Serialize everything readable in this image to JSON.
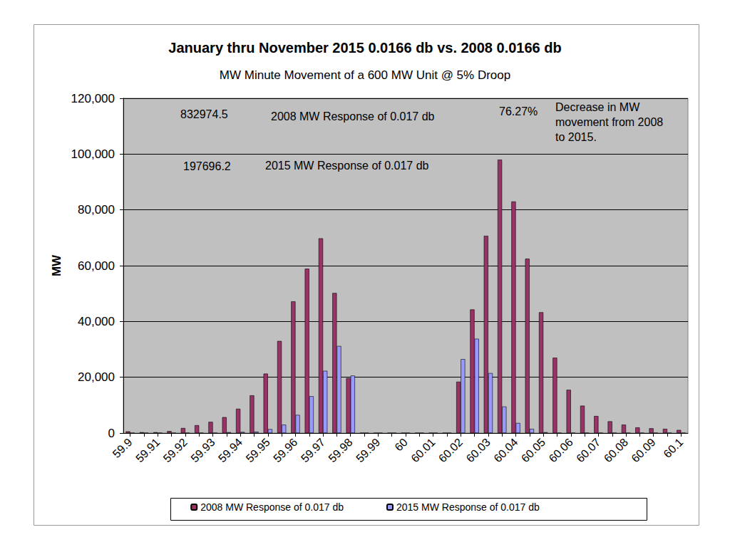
{
  "chart_data": {
    "type": "bar",
    "title": "January thru November 2015 0.0166 db vs. 2008 0.0166 db",
    "subtitle": "MW Minute Movement of a 600 MW Unit @ 5% Droop",
    "y_label": "MW",
    "categories": [
      "59.9",
      null,
      "59.91",
      null,
      "59.92",
      null,
      "59.93",
      null,
      "59.94",
      null,
      "59.95",
      null,
      "59.96",
      null,
      "59.97",
      null,
      "59.98",
      null,
      "59.99",
      null,
      "60",
      null,
      "60.01",
      null,
      "60.02",
      null,
      "60.03",
      null,
      "60.04",
      null,
      "60.05",
      null,
      "60.06",
      null,
      "60.07",
      null,
      "60.08",
      null,
      "60.09",
      null,
      "60.1"
    ],
    "series": [
      {
        "name": "2008 MW Response of 0.017 db",
        "color": "#993366",
        "values": [
          600,
          300,
          300,
          700,
          1800,
          2800,
          4000,
          5700,
          8700,
          13500,
          21300,
          33000,
          47200,
          58900,
          69800,
          50200,
          19700,
          0,
          0,
          0,
          0,
          0,
          0,
          0,
          18400,
          44300,
          70700,
          98000,
          83000,
          62500,
          43300,
          27000,
          15500,
          9800,
          6100,
          4200,
          3000,
          2000,
          1700,
          1500,
          1100
        ]
      },
      {
        "name": "2015 MW Response of 0.017 db",
        "color": "#9999FF",
        "values": [
          0,
          0,
          0,
          0,
          0,
          0,
          0,
          300,
          400,
          500,
          1400,
          3000,
          6500,
          13200,
          22300,
          31200,
          20600,
          0,
          0,
          0,
          0,
          0,
          0,
          0,
          26500,
          33800,
          21500,
          9500,
          3600,
          1500,
          300,
          0,
          0,
          0,
          0,
          0,
          0,
          0,
          0,
          0,
          0
        ]
      }
    ],
    "annotations": [
      "832974.5",
      "2008 MW Response of 0.017 db",
      "197696.2",
      "2015 MW Response of 0.017 db",
      "76.27%",
      "Decrease in MW movement from 2008 to 2015."
    ],
    "ylim": [
      0,
      120000
    ],
    "yticks": [
      0,
      20000,
      40000,
      60000,
      80000,
      100000,
      120000
    ],
    "grid": true,
    "legend": "bottom"
  }
}
